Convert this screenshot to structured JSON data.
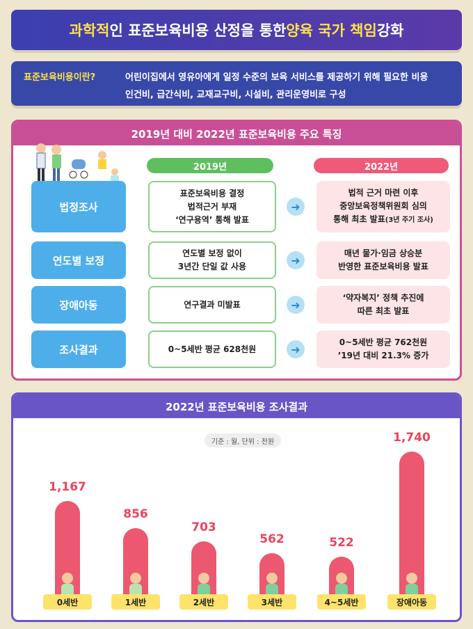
{
  "title": {
    "part1": "과학적",
    "part2": "인 표준보육비용 산정을 통한 ",
    "part3": "양육 국가 책임",
    "part4": " 강화"
  },
  "definition": {
    "label": "표준보육비용이란?",
    "line1": "어린이집에서 영유아에게 일정 수준의 보육 서비스를 제공하기 위해 필요한 비용",
    "line2": "인건비, 급간식비, 교재교구비, 시설비, 관리운영비로 구성"
  },
  "features": {
    "header": "2019년 대비 2022년 표준보육비용 주요 특징",
    "col2019": "2019년",
    "col2022": "2022년",
    "rows": [
      {
        "label": "법정조사",
        "y2019": [
          "표준보육비용 결정",
          "법적근거 부재",
          "‘연구용역’ 통해 발표"
        ],
        "y2022": [
          "법적 근거 마련 이후",
          "중앙보육정책위원회 심의",
          "통해 최초 발표"
        ],
        "y2022_note": "(3년 주기 조사)"
      },
      {
        "label": "연도별 보정",
        "y2019": [
          "연도별 보정 없이",
          "3년간 단일 값 사용"
        ],
        "y2022": [
          "매년 물가·임금 상승분",
          "반영한 표준보육비용 발표"
        ]
      },
      {
        "label": "장애아동",
        "y2019": [
          "연구결과 미발표"
        ],
        "y2022": [
          "‘약자복지’ 정책 추진에",
          "따른 최초 발표"
        ]
      },
      {
        "label": "조사결과",
        "y2019": [
          "0~5세반 평균 628천원"
        ],
        "y2022": [
          "0~5세반 평균 762천원",
          "’19년 대비 21.3% 증가"
        ]
      }
    ]
  },
  "chart_data": {
    "type": "bar",
    "title": "2022년 표준보육비용 조사결과",
    "note": "기준 : 월, 단위 : 천원",
    "categories": [
      "0세반",
      "1세반",
      "2세반",
      "3세반",
      "4~5세반",
      "장애아동"
    ],
    "values": [
      1167,
      856,
      703,
      562,
      522,
      1740
    ],
    "value_labels": [
      "1,167",
      "856",
      "703",
      "562",
      "522",
      "1,740"
    ],
    "bar_color": "#eb5870",
    "ylim": [
      0,
      1740
    ]
  },
  "colors": {
    "title_bg": "#3c3fb0",
    "feature_accent": "#c84f96",
    "chart_accent": "#6a55c6",
    "highlight": "#ffe14a"
  }
}
